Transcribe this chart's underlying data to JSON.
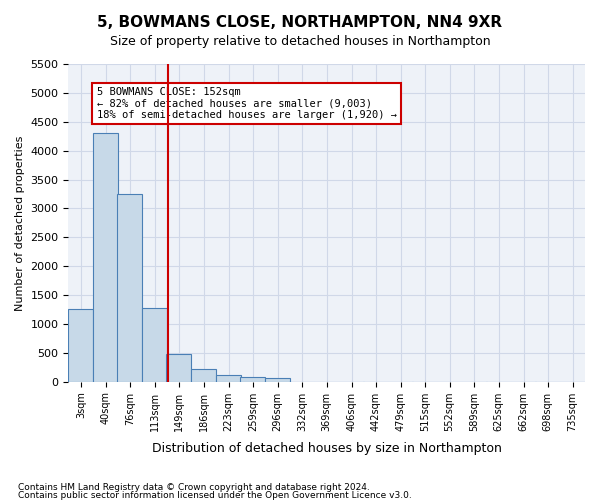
{
  "title": "5, BOWMANS CLOSE, NORTHAMPTON, NN4 9XR",
  "subtitle": "Size of property relative to detached houses in Northampton",
  "xlabel": "Distribution of detached houses by size in Northampton",
  "ylabel": "Number of detached properties",
  "footnote1": "Contains HM Land Registry data © Crown copyright and database right 2024.",
  "footnote2": "Contains public sector information licensed under the Open Government Licence v3.0.",
  "bar_color": "#c7d9e8",
  "bar_edge_color": "#4a7fb5",
  "annotation_box_color": "#cc0000",
  "vline_color": "#cc0000",
  "property_size": 152,
  "annotation_text": "5 BOWMANS CLOSE: 152sqm\n← 82% of detached houses are smaller (9,003)\n18% of semi-detached houses are larger (1,920) →",
  "categories": [
    "3sqm",
    "40sqm",
    "76sqm",
    "113sqm",
    "149sqm",
    "186sqm",
    "223sqm",
    "259sqm",
    "296sqm",
    "332sqm",
    "369sqm",
    "406sqm",
    "442sqm",
    "479sqm",
    "515sqm",
    "552sqm",
    "589sqm",
    "625sqm",
    "662sqm",
    "698sqm",
    "735sqm"
  ],
  "bin_left_edges": [
    3,
    40,
    76,
    113,
    149,
    186,
    223,
    259,
    296,
    332,
    369,
    406,
    442,
    479,
    515,
    552,
    589,
    625,
    662,
    698,
    735
  ],
  "bar_heights": [
    1250,
    4300,
    3250,
    1270,
    480,
    220,
    110,
    75,
    55,
    0,
    0,
    0,
    0,
    0,
    0,
    0,
    0,
    0,
    0,
    0,
    0
  ],
  "ylim": [
    0,
    5500
  ],
  "yticks": [
    0,
    500,
    1000,
    1500,
    2000,
    2500,
    3000,
    3500,
    4000,
    4500,
    5000,
    5500
  ],
  "grid_color": "#d0d8e8",
  "background_color": "#eef2f8"
}
